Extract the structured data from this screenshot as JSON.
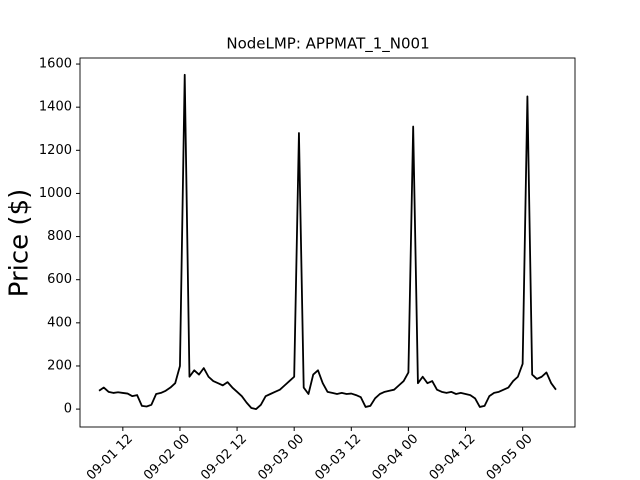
{
  "chart_data": {
    "type": "line",
    "title": "NodeLMP: APPMAT_1_N001",
    "ylabel": "Price ($)",
    "x": [
      "09-01 07",
      "09-01 08",
      "09-01 09",
      "09-01 10",
      "09-01 11",
      "09-01 12",
      "09-01 13",
      "09-01 14",
      "09-01 15",
      "09-01 16",
      "09-01 17",
      "09-01 18",
      "09-01 19",
      "09-01 20",
      "09-01 21",
      "09-01 22",
      "09-01 23",
      "09-02 00",
      "09-02 01",
      "09-02 02",
      "09-02 03",
      "09-02 04",
      "09-02 05",
      "09-02 06",
      "09-02 07",
      "09-02 08",
      "09-02 09",
      "09-02 10",
      "09-02 11",
      "09-02 12",
      "09-02 13",
      "09-02 14",
      "09-02 15",
      "09-02 16",
      "09-02 17",
      "09-02 18",
      "09-02 19",
      "09-02 20",
      "09-02 21",
      "09-02 22",
      "09-02 23",
      "09-03 00",
      "09-03 01",
      "09-03 02",
      "09-03 03",
      "09-03 04",
      "09-03 05",
      "09-03 06",
      "09-03 07",
      "09-03 08",
      "09-03 09",
      "09-03 10",
      "09-03 11",
      "09-03 12",
      "09-03 13",
      "09-03 14",
      "09-03 15",
      "09-03 16",
      "09-03 17",
      "09-03 18",
      "09-03 19",
      "09-03 20",
      "09-03 21",
      "09-03 22",
      "09-03 23",
      "09-04 00",
      "09-04 01",
      "09-04 02",
      "09-04 03",
      "09-04 04",
      "09-04 05",
      "09-04 06",
      "09-04 07",
      "09-04 08",
      "09-04 09",
      "09-04 10",
      "09-04 11",
      "09-04 12",
      "09-04 13",
      "09-04 14",
      "09-04 15",
      "09-04 16",
      "09-04 17",
      "09-04 18",
      "09-04 19",
      "09-04 20",
      "09-04 21",
      "09-04 22",
      "09-04 23",
      "09-05 00",
      "09-05 01",
      "09-05 02",
      "09-05 03",
      "09-05 04",
      "09-05 05",
      "09-05 06",
      "09-05 07"
    ],
    "values": [
      85,
      100,
      80,
      75,
      78,
      75,
      72,
      60,
      65,
      15,
      12,
      20,
      70,
      75,
      85,
      100,
      120,
      200,
      1550,
      150,
      180,
      160,
      190,
      150,
      130,
      120,
      110,
      125,
      100,
      80,
      60,
      30,
      5,
      0,
      20,
      60,
      70,
      80,
      90,
      110,
      130,
      150,
      1280,
      100,
      70,
      160,
      180,
      120,
      80,
      75,
      70,
      75,
      70,
      72,
      65,
      55,
      10,
      15,
      50,
      70,
      80,
      85,
      90,
      110,
      130,
      170,
      1310,
      120,
      150,
      120,
      130,
      90,
      80,
      75,
      80,
      70,
      75,
      70,
      65,
      50,
      10,
      15,
      60,
      75,
      80,
      90,
      100,
      130,
      150,
      210,
      1450,
      160,
      140,
      150,
      170,
      120,
      90
    ],
    "color": "#000000",
    "xlim": [
      "09-01 03",
      "09-05 11"
    ],
    "xticks": [
      "09-01 12",
      "09-02 00",
      "09-02 12",
      "09-03 00",
      "09-03 12",
      "09-04 00",
      "09-04 12",
      "09-05 00"
    ],
    "ylim": [
      -83,
      1628
    ],
    "yticks": [
      0,
      200,
      400,
      600,
      800,
      1000,
      1200,
      1400,
      1600
    ]
  }
}
